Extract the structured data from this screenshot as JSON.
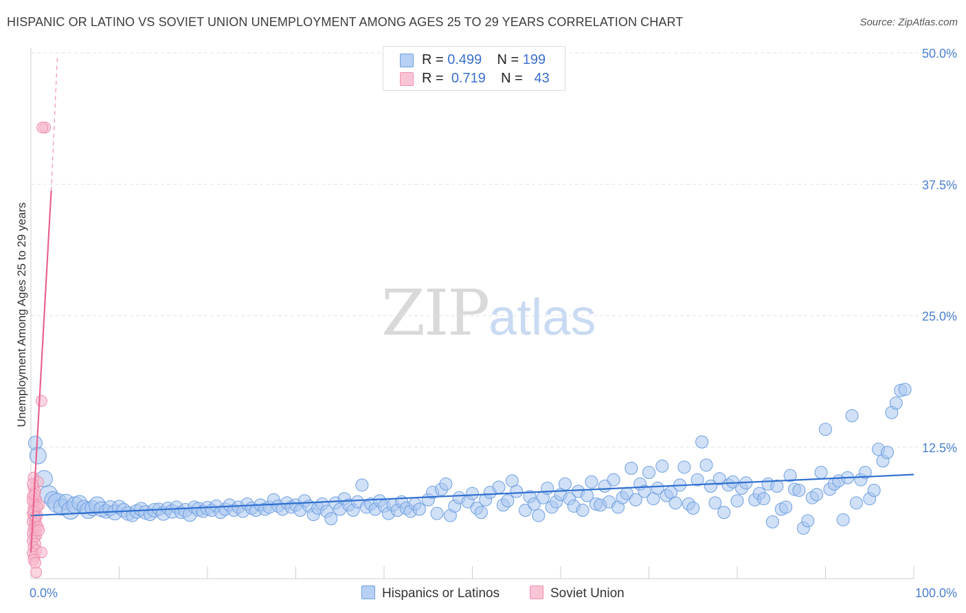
{
  "title": "HISPANIC OR LATINO VS SOVIET UNION UNEMPLOYMENT AMONG AGES 25 TO 29 YEARS CORRELATION CHART",
  "source": "Source: ZipAtlas.com",
  "watermark": {
    "zip": "ZIP",
    "atlas": "atlas"
  },
  "colors": {
    "blue_fill": "#a9c6f0",
    "blue_stroke": "#6d9ee0",
    "blue_line": "#2f6fcf",
    "pink_fill": "#f7b9cc",
    "pink_stroke": "#ee8fae",
    "pink_line": "#e8628f",
    "tick_text": "#4a7fd0",
    "grid": "#dde3ea"
  },
  "legend": {
    "rows": [
      {
        "r_label": "R =",
        "r_value": "0.499",
        "n_label": "N =",
        "n_value": "199"
      },
      {
        "r_label": "R =",
        "r_value": "0.719",
        "n_label": "N =",
        "n_value": "43"
      }
    ]
  },
  "bottom_legend": [
    {
      "label": "Hispanics or Latinos"
    },
    {
      "label": "Soviet Union"
    }
  ],
  "chart_data": {
    "type": "scatter",
    "title": "HISPANIC OR LATINO VS SOVIET UNION UNEMPLOYMENT AMONG AGES 25 TO 29 YEARS CORRELATION CHART",
    "xlabel": "",
    "ylabel": "Unemployment Among Ages 25 to 29 years",
    "xlim": [
      0,
      100
    ],
    "ylim": [
      0,
      51
    ],
    "x_tick_labels": [
      "0.0%",
      "100.0%"
    ],
    "y_ticks": [
      12.5,
      25.0,
      37.5,
      50.0
    ],
    "y_tick_labels": [
      "12.5%",
      "25.0%",
      "37.5%",
      "50.0%"
    ],
    "grid": "horizontal dashed",
    "series": [
      {
        "name": "Hispanics or Latinos",
        "R": 0.499,
        "N": 199,
        "trend": {
          "x": [
            0,
            100
          ],
          "y": [
            6.0,
            9.9
          ],
          "style": "solid"
        },
        "points": [
          [
            0.5,
            12.9,
            10
          ],
          [
            0.8,
            11.7,
            12
          ],
          [
            1.5,
            9.5,
            12
          ],
          [
            2.0,
            8.0,
            13
          ],
          [
            2.5,
            7.5,
            12
          ],
          [
            3.0,
            7.2,
            14
          ],
          [
            3.5,
            6.8,
            12
          ],
          [
            4.0,
            7.3,
            11
          ],
          [
            4.5,
            6.5,
            13
          ],
          [
            5.0,
            7.0,
            12
          ],
          [
            5.5,
            7.2,
            11
          ],
          [
            6.0,
            6.8,
            10
          ],
          [
            6.5,
            6.5,
            12
          ],
          [
            7.0,
            6.7,
            11
          ],
          [
            7.5,
            7.0,
            12
          ],
          [
            8.0,
            6.6,
            11
          ],
          [
            8.5,
            6.4,
            10
          ],
          [
            9.0,
            6.7,
            11
          ],
          [
            9.5,
            6.3,
            11
          ],
          [
            10.0,
            6.8,
            10
          ],
          [
            10.5,
            6.5,
            10
          ],
          [
            11.0,
            6.2,
            10
          ],
          [
            11.5,
            6.0,
            9
          ],
          [
            12.0,
            6.4,
            10
          ],
          [
            12.5,
            6.6,
            10
          ],
          [
            13.0,
            6.3,
            10
          ],
          [
            13.5,
            6.1,
            9
          ],
          [
            14.0,
            6.5,
            10
          ],
          [
            14.5,
            6.6,
            9
          ],
          [
            15.0,
            6.2,
            10
          ],
          [
            15.5,
            6.7,
            9
          ],
          [
            16.0,
            6.4,
            10
          ],
          [
            16.5,
            6.8,
            9
          ],
          [
            17.0,
            6.3,
            9
          ],
          [
            17.5,
            6.5,
            10
          ],
          [
            18.0,
            6.1,
            10
          ],
          [
            18.5,
            6.8,
            9
          ],
          [
            19.0,
            6.6,
            10
          ],
          [
            19.5,
            6.4,
            9
          ],
          [
            20.0,
            6.7,
            10
          ],
          [
            20.5,
            6.5,
            9
          ],
          [
            21.0,
            6.9,
            9
          ],
          [
            21.5,
            6.3,
            9
          ],
          [
            22.0,
            6.6,
            9
          ],
          [
            22.5,
            7.0,
            9
          ],
          [
            23.0,
            6.5,
            9
          ],
          [
            23.5,
            6.8,
            9
          ],
          [
            24.0,
            6.4,
            9
          ],
          [
            24.5,
            7.1,
            9
          ],
          [
            25.0,
            6.7,
            9
          ],
          [
            25.5,
            6.5,
            9
          ],
          [
            26.0,
            7.0,
            9
          ],
          [
            26.5,
            6.6,
            9
          ],
          [
            27.0,
            6.8,
            9
          ],
          [
            27.5,
            7.5,
            9
          ],
          [
            28.0,
            6.9,
            9
          ],
          [
            28.5,
            6.6,
            9
          ],
          [
            29.0,
            7.2,
            9
          ],
          [
            29.5,
            6.8,
            9
          ],
          [
            30.0,
            7.0,
            9
          ],
          [
            30.5,
            6.5,
            9
          ],
          [
            31.0,
            7.4,
            9
          ],
          [
            31.5,
            6.9,
            9
          ],
          [
            32.0,
            6.1,
            9
          ],
          [
            32.5,
            6.7,
            9
          ],
          [
            33.0,
            7.1,
            9
          ],
          [
            33.5,
            6.4,
            9
          ],
          [
            34.0,
            5.7,
            9
          ],
          [
            34.5,
            7.2,
            9
          ],
          [
            35.0,
            6.6,
            9
          ],
          [
            35.5,
            7.6,
            9
          ],
          [
            36.0,
            7.0,
            9
          ],
          [
            36.5,
            6.5,
            9
          ],
          [
            37.0,
            7.3,
            9
          ],
          [
            37.5,
            8.9,
            9
          ],
          [
            38.0,
            6.8,
            9
          ],
          [
            38.5,
            7.1,
            9
          ],
          [
            39.0,
            6.6,
            9
          ],
          [
            39.5,
            7.4,
            9
          ],
          [
            40.0,
            6.9,
            9
          ],
          [
            40.5,
            6.2,
            9
          ],
          [
            41.0,
            7.0,
            9
          ],
          [
            41.5,
            6.5,
            9
          ],
          [
            42.0,
            7.3,
            9
          ],
          [
            42.5,
            6.7,
            9
          ],
          [
            43.0,
            6.4,
            9
          ],
          [
            43.5,
            7.1,
            9
          ],
          [
            44.0,
            6.6,
            9
          ],
          [
            45.0,
            7.5,
            9
          ],
          [
            45.5,
            8.2,
            9
          ],
          [
            46.0,
            6.2,
            9
          ],
          [
            46.5,
            8.5,
            9
          ],
          [
            47.0,
            9.0,
            9
          ],
          [
            47.5,
            6.0,
            9
          ],
          [
            48.0,
            6.9,
            9
          ],
          [
            48.5,
            7.7,
            9
          ],
          [
            49.5,
            7.3,
            9
          ],
          [
            50.0,
            8.1,
            9
          ],
          [
            50.5,
            6.7,
            9
          ],
          [
            51.0,
            6.3,
            9
          ],
          [
            51.5,
            7.5,
            9
          ],
          [
            52.0,
            8.2,
            9
          ],
          [
            53.0,
            8.7,
            9
          ],
          [
            53.5,
            7.0,
            9
          ],
          [
            54.0,
            7.4,
            9
          ],
          [
            54.5,
            9.3,
            9
          ],
          [
            55.0,
            8.3,
            9
          ],
          [
            56.0,
            6.5,
            9
          ],
          [
            56.5,
            7.8,
            9
          ],
          [
            57.0,
            7.1,
            9
          ],
          [
            57.5,
            6.0,
            9
          ],
          [
            58.0,
            7.7,
            9
          ],
          [
            58.5,
            8.6,
            9
          ],
          [
            59.0,
            6.8,
            9
          ],
          [
            59.5,
            7.3,
            9
          ],
          [
            60.0,
            8.0,
            9
          ],
          [
            60.5,
            9.0,
            9
          ],
          [
            61.0,
            7.6,
            9
          ],
          [
            61.5,
            6.9,
            9
          ],
          [
            62.0,
            8.3,
            9
          ],
          [
            62.5,
            6.5,
            9
          ],
          [
            63.0,
            7.9,
            9
          ],
          [
            63.5,
            9.2,
            9
          ],
          [
            64.0,
            7.1,
            9
          ],
          [
            64.5,
            7.0,
            9
          ],
          [
            65.0,
            8.8,
            9
          ],
          [
            65.5,
            7.3,
            9
          ],
          [
            66.0,
            9.4,
            9
          ],
          [
            66.5,
            6.8,
            9
          ],
          [
            67.0,
            7.7,
            9
          ],
          [
            67.5,
            8.1,
            9
          ],
          [
            68.0,
            10.5,
            9
          ],
          [
            68.5,
            7.5,
            9
          ],
          [
            69.0,
            9.0,
            9
          ],
          [
            69.5,
            8.3,
            9
          ],
          [
            70.0,
            10.1,
            9
          ],
          [
            70.5,
            7.6,
            9
          ],
          [
            71.0,
            8.6,
            9
          ],
          [
            71.5,
            10.7,
            9
          ],
          [
            72.0,
            7.9,
            9
          ],
          [
            72.5,
            8.2,
            9
          ],
          [
            73.0,
            7.2,
            9
          ],
          [
            73.5,
            8.9,
            9
          ],
          [
            74.0,
            10.6,
            9
          ],
          [
            74.5,
            7.1,
            9
          ],
          [
            75.0,
            6.7,
            9
          ],
          [
            75.5,
            9.4,
            9
          ],
          [
            76.0,
            13.0,
            9
          ],
          [
            76.5,
            10.8,
            9
          ],
          [
            77.0,
            8.8,
            9
          ],
          [
            77.5,
            7.2,
            9
          ],
          [
            78.0,
            9.5,
            9
          ],
          [
            78.5,
            6.3,
            9
          ],
          [
            79.0,
            8.9,
            9
          ],
          [
            79.5,
            9.2,
            9
          ],
          [
            80.0,
            7.4,
            9
          ],
          [
            80.5,
            8.6,
            9
          ],
          [
            81.0,
            9.1,
            9
          ],
          [
            82.0,
            7.5,
            9
          ],
          [
            82.5,
            8.1,
            9
          ],
          [
            83.0,
            7.6,
            9
          ],
          [
            83.5,
            9.0,
            9
          ],
          [
            84.0,
            5.4,
            9
          ],
          [
            84.5,
            8.8,
            9
          ],
          [
            85.0,
            6.6,
            9
          ],
          [
            85.5,
            6.8,
            9
          ],
          [
            86.0,
            9.8,
            9
          ],
          [
            86.5,
            8.5,
            9
          ],
          [
            87.0,
            8.4,
            9
          ],
          [
            87.5,
            4.8,
            9
          ],
          [
            88.0,
            5.5,
            9
          ],
          [
            88.5,
            7.7,
            9
          ],
          [
            89.0,
            8.0,
            9
          ],
          [
            89.5,
            10.1,
            9
          ],
          [
            90.0,
            14.2,
            9
          ],
          [
            90.5,
            8.5,
            9
          ],
          [
            91.0,
            9.0,
            9
          ],
          [
            91.5,
            9.3,
            9
          ],
          [
            92.0,
            5.6,
            9
          ],
          [
            92.5,
            9.6,
            9
          ],
          [
            93.0,
            15.5,
            9
          ],
          [
            93.5,
            7.2,
            9
          ],
          [
            94.0,
            9.4,
            9
          ],
          [
            94.5,
            10.1,
            9
          ],
          [
            95.0,
            7.6,
            9
          ],
          [
            95.5,
            8.4,
            9
          ],
          [
            96.0,
            12.3,
            9
          ],
          [
            96.5,
            11.2,
            9
          ],
          [
            97.0,
            12.0,
            9
          ],
          [
            97.5,
            15.8,
            9
          ],
          [
            98.0,
            16.7,
            9
          ],
          [
            98.5,
            17.9,
            9
          ],
          [
            99.0,
            18.0,
            9
          ]
        ]
      },
      {
        "name": "Soviet Union",
        "R": 0.719,
        "N": 43,
        "trend": {
          "x": [
            0,
            2.3
          ],
          "y": [
            2.5,
            36.9
          ],
          "style": "solid",
          "extension": {
            "x": [
              2.3,
              3.0
            ],
            "y": [
              36.9,
              49.8
            ],
            "style": "dashed"
          }
        },
        "points": [
          [
            1.6,
            42.9,
            8
          ],
          [
            1.3,
            42.9,
            8
          ],
          [
            1.2,
            16.9,
            8
          ],
          [
            0.3,
            9.6,
            8
          ],
          [
            0.8,
            9.2,
            8
          ],
          [
            0.3,
            8.6,
            8
          ],
          [
            0.5,
            8.3,
            8
          ],
          [
            0.2,
            7.8,
            8
          ],
          [
            0.6,
            7.5,
            8
          ],
          [
            0.4,
            7.2,
            8
          ],
          [
            0.9,
            7.0,
            8
          ],
          [
            0.3,
            6.8,
            8
          ],
          [
            0.5,
            6.5,
            8
          ],
          [
            0.2,
            6.2,
            8
          ],
          [
            0.7,
            6.0,
            8
          ],
          [
            0.3,
            5.8,
            8
          ],
          [
            0.5,
            5.6,
            8
          ],
          [
            0.2,
            5.4,
            8
          ],
          [
            0.6,
            5.2,
            8
          ],
          [
            0.4,
            5.0,
            8
          ],
          [
            0.8,
            4.9,
            8
          ],
          [
            0.3,
            4.7,
            8
          ],
          [
            0.5,
            4.5,
            8
          ],
          [
            0.2,
            4.3,
            8
          ],
          [
            0.6,
            4.1,
            8
          ],
          [
            0.4,
            3.9,
            8
          ],
          [
            0.2,
            3.6,
            8
          ],
          [
            0.5,
            3.3,
            8
          ],
          [
            0.3,
            3.0,
            8
          ],
          [
            0.6,
            2.7,
            8
          ],
          [
            0.2,
            2.4,
            8
          ],
          [
            0.4,
            2.1,
            8
          ],
          [
            1.2,
            2.5,
            8
          ],
          [
            0.3,
            1.8,
            8
          ],
          [
            0.5,
            1.5,
            8
          ],
          [
            0.6,
            0.6,
            8
          ],
          [
            0.2,
            7.4,
            8
          ],
          [
            0.4,
            8.0,
            8
          ],
          [
            0.7,
            6.8,
            8
          ],
          [
            0.3,
            6.4,
            8
          ],
          [
            0.9,
            4.6,
            8
          ],
          [
            0.5,
            5.9,
            8
          ],
          [
            0.2,
            9.0,
            8
          ]
        ]
      }
    ]
  }
}
